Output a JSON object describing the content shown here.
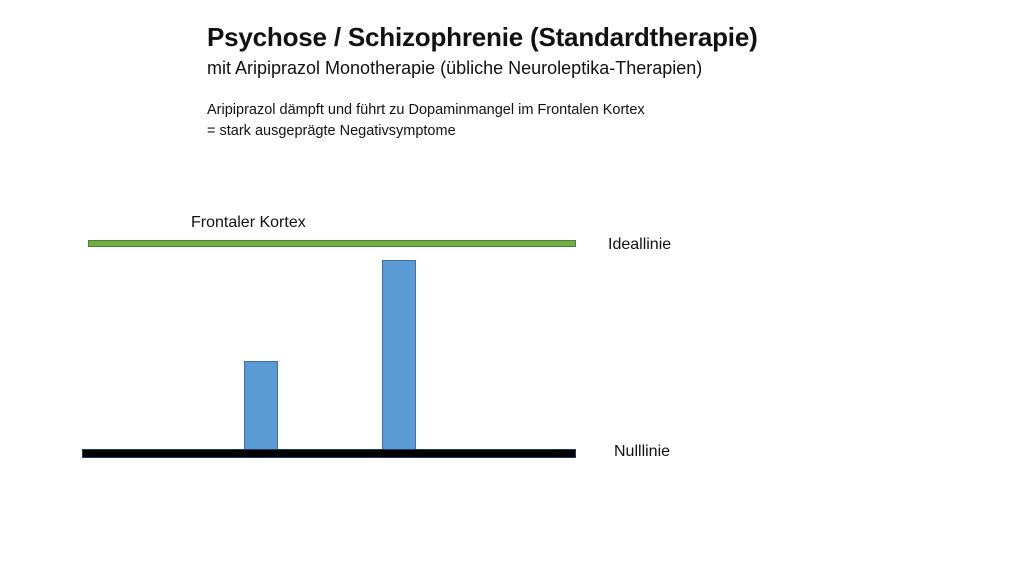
{
  "slide": {
    "title": "Psychose / Schizophrenie (Standardtherapie)",
    "subtitle": "mit Aripiprazol Monotherapie (übliche Neuroleptika-Therapien)",
    "description_line1": "Aripiprazol dämpft und führt zu Dopaminmangel im Frontalen Kortex",
    "description_line2": "= stark ausgeprägte Negativsymptome"
  },
  "diagram": {
    "region_label": "Frontaler Kortex",
    "ideal_line_label": "Ideallinie",
    "null_line_label": "Nulllinie",
    "colors": {
      "ideal_line": "#70ad47",
      "null_line": "#000000",
      "bars": "#5b9bd5"
    },
    "bars_relative_to_ideal": [
      0.43,
      0.91
    ]
  }
}
